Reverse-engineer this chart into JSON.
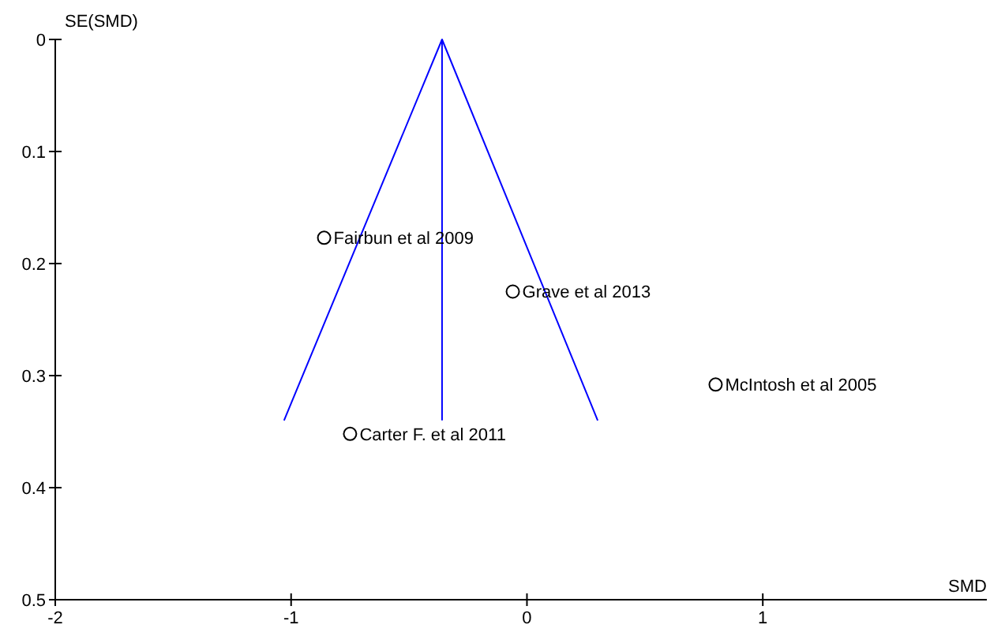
{
  "chart_data": {
    "type": "scatter",
    "xlabel": "SMD",
    "ylabel": "SE(SMD)",
    "xlim": [
      -2,
      1.95
    ],
    "ylim": [
      0.5,
      0
    ],
    "xticks": [
      -2,
      -1,
      0,
      1
    ],
    "yticks": [
      0,
      0.1,
      0.2,
      0.3,
      0.4,
      0.5
    ],
    "series": [
      {
        "color": "#000000",
        "marker": "circle",
        "x": [
          -0.86,
          -0.06,
          0.8,
          -0.75
        ],
        "values": [
          0.177,
          0.225,
          0.308,
          0.352
        ]
      },
      {
        "type": "line",
        "marker": "none",
        "color": "#0000ff",
        "x": [
          -1.03,
          -0.36,
          0.3
        ],
        "values": [
          0.34,
          0,
          0.34
        ]
      },
      {
        "type": "line",
        "marker": "none",
        "color": "#0000ff",
        "x": [
          -0.36,
          -0.36
        ],
        "values": [
          0,
          0.34
        ]
      }
    ],
    "annotations": [
      {
        "text": "Fairbun et al 2009",
        "x": -0.86,
        "y": 0.177
      },
      {
        "text": "Grave et al 2013",
        "x": -0.06,
        "y": 0.225
      },
      {
        "text": "McIntosh et al 2005",
        "x": 0.8,
        "y": 0.308
      },
      {
        "text": "Carter F. et al 2011",
        "x": -0.75,
        "y": 0.352
      }
    ]
  }
}
